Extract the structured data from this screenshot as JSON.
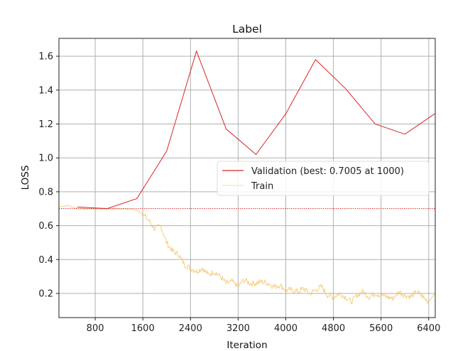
{
  "chart_data": {
    "type": "line",
    "title": "Label",
    "xlabel": "Iteration",
    "ylabel": "LOSS",
    "xlim": [
      200,
      6500
    ],
    "ylim": [
      0.05,
      1.7
    ],
    "xticks": [
      800,
      1600,
      2400,
      3200,
      4000,
      4800,
      5600,
      6400
    ],
    "xtick_labels": [
      "800",
      "1600",
      "2400",
      "3200",
      "4000",
      "4800",
      "5600",
      "6400"
    ],
    "yticks": [
      0.2,
      0.4,
      0.6,
      0.8,
      1.0,
      1.2,
      1.4,
      1.6
    ],
    "ytick_labels": [
      "0.2",
      "0.4",
      "0.6",
      "0.8",
      "1.0",
      "1.2",
      "1.4",
      "1.6"
    ],
    "grid": true,
    "legend_position": "center right",
    "series": [
      {
        "name": "Validation (best: 0.7005 at 1000)",
        "color": "#d62728",
        "style": "solid",
        "x": [
          500,
          1000,
          1500,
          2000,
          2500,
          3000,
          3500,
          4000,
          4500,
          5000,
          5500,
          6000,
          6500
        ],
        "values": [
          0.71,
          0.7005,
          0.76,
          1.04,
          1.63,
          1.17,
          1.02,
          1.26,
          1.58,
          1.41,
          1.2,
          1.14,
          1.26
        ]
      },
      {
        "name": "Train",
        "color": "#f5c46a",
        "style": "solid-noisy",
        "x": [
          200,
          350,
          500,
          700,
          900,
          1100,
          1300,
          1500,
          1600,
          1700,
          1800,
          1900,
          2000,
          2100,
          2200,
          2300,
          2400,
          2500,
          2600,
          2700,
          2800,
          2900,
          3000,
          3100,
          3200,
          3300,
          3400,
          3500,
          3600,
          3700,
          3800,
          3900,
          4000,
          4100,
          4200,
          4300,
          4400,
          4500,
          4600,
          4700,
          4800,
          4900,
          5000,
          5100,
          5200,
          5300,
          5400,
          5500,
          5600,
          5700,
          5800,
          5900,
          6000,
          6100,
          6200,
          6300,
          6400,
          6500
        ],
        "values": [
          0.71,
          0.72,
          0.7,
          0.7,
          0.7,
          0.7,
          0.7,
          0.69,
          0.67,
          0.63,
          0.58,
          0.6,
          0.5,
          0.45,
          0.43,
          0.37,
          0.35,
          0.33,
          0.35,
          0.31,
          0.33,
          0.3,
          0.26,
          0.27,
          0.24,
          0.28,
          0.26,
          0.26,
          0.27,
          0.26,
          0.24,
          0.25,
          0.22,
          0.22,
          0.21,
          0.23,
          0.2,
          0.22,
          0.24,
          0.19,
          0.18,
          0.2,
          0.18,
          0.15,
          0.19,
          0.21,
          0.18,
          0.2,
          0.19,
          0.18,
          0.17,
          0.21,
          0.19,
          0.18,
          0.21,
          0.18,
          0.15,
          0.2
        ]
      }
    ],
    "reference_line": {
      "y": 0.7005,
      "color": "#d62728",
      "style": "dotted"
    },
    "legend": [
      {
        "label": "Validation (best: 0.7005 at 1000)",
        "color": "#d62728"
      },
      {
        "label": "Train",
        "color": "#f5e6b0"
      }
    ]
  }
}
